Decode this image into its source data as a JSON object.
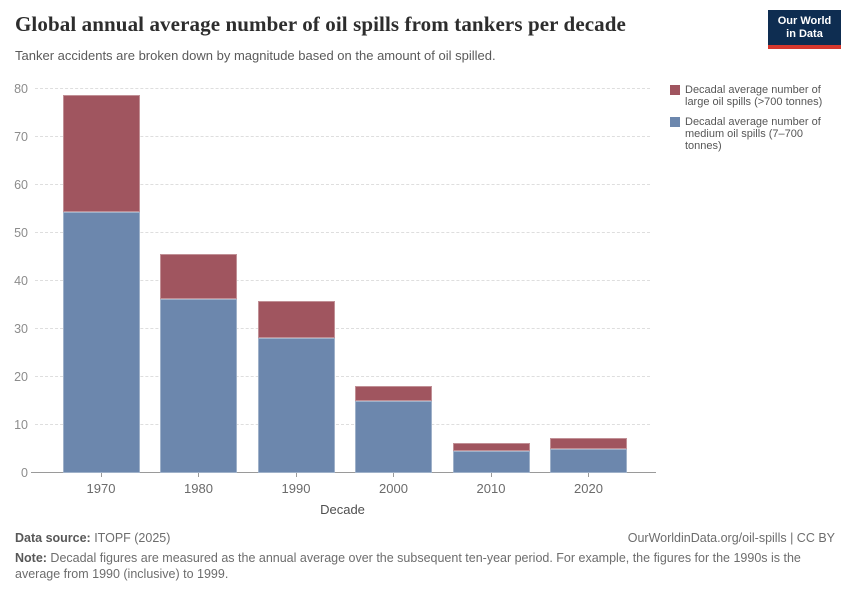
{
  "header": {
    "title": "Global annual average number of oil spills from tankers per decade",
    "subtitle": "Tanker accidents are broken down by magnitude based on the amount of oil spilled.",
    "logo": {
      "line1": "Our World",
      "line2": "in Data",
      "bg_color": "#0e2d51",
      "accent_color": "#d7382e"
    }
  },
  "legend": {
    "items": [
      {
        "label": "Decadal average number of large oil spills (>700 tonnes)",
        "color": "#a0555f"
      },
      {
        "label": "Decadal average number of medium oil spills (7–700 tonnes)",
        "color": "#6c87ad"
      }
    ]
  },
  "chart_data": {
    "type": "bar",
    "stacked": true,
    "title": "Global annual average number of oil spills from tankers per decade",
    "categories": [
      "1970",
      "1980",
      "1990",
      "2000",
      "2010",
      "2020"
    ],
    "series": [
      {
        "name": "Decadal average number of medium oil spills (7–700 tonnes)",
        "color": "#6c87ad",
        "values": [
          54.3,
          36.2,
          28.1,
          14.9,
          4.5,
          5.1
        ]
      },
      {
        "name": "Decadal average number of large oil spills (>700 tonnes)",
        "color": "#a0555f",
        "values": [
          24.5,
          9.4,
          7.8,
          3.2,
          1.8,
          2.1
        ]
      }
    ],
    "totals": [
      78.8,
      45.6,
      35.9,
      18.1,
      6.3,
      7.2
    ],
    "xlabel": "Decade",
    "ylabel": "",
    "ylim": [
      0,
      80
    ],
    "yticks": [
      0,
      10,
      20,
      30,
      40,
      50,
      60,
      70,
      80
    ],
    "grid": "horizontal-dashed",
    "legend_position": "right"
  },
  "axes": {
    "x_label": "Decade"
  },
  "footer": {
    "datasource_label": "Data source:",
    "datasource_value": " ITOPF (2025)",
    "rights": "OurWorldinData.org/oil-spills | CC BY",
    "note_label": "Note:",
    "note_text": " Decadal figures are measured as the annual average over the subsequent ten-year period. For example, the figures for the 1990s is the average from 1990 (inclusive) to 1999."
  }
}
